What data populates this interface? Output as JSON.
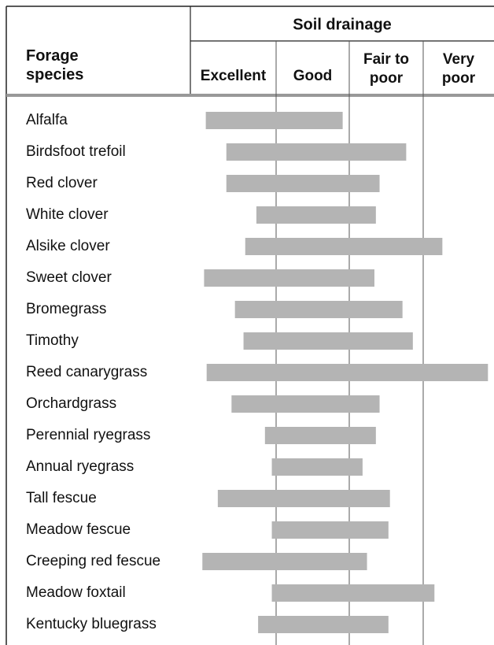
{
  "chart_data": {
    "type": "range-bar",
    "title": "Soil drainage",
    "row_header": "Forage species",
    "columns": [
      "Excellent",
      "Good",
      "Fair to poor",
      "Very poor"
    ],
    "categories": [
      "Alfalfa",
      "Birdsfoot trefoil",
      "Red clover",
      "White clover",
      "Alsike clover",
      "Sweet clover",
      "Bromegrass",
      "Timothy",
      "Reed canarygrass",
      "Orchardgrass",
      "Perennial ryegrass",
      "Annual ryegrass",
      "Tall fescue",
      "Meadow fescue",
      "Creeping red fescue",
      "Meadow foxtail",
      "Kentucky bluegrass"
    ],
    "start": [
      0.18,
      0.42,
      0.42,
      0.77,
      0.64,
      0.16,
      0.52,
      0.62,
      0.19,
      0.48,
      0.87,
      0.95,
      0.32,
      0.95,
      0.14,
      0.95,
      0.79
    ],
    "end": [
      1.91,
      2.77,
      2.41,
      2.36,
      3.29,
      2.34,
      2.72,
      2.86,
      3.98,
      2.41,
      2.36,
      2.18,
      2.55,
      2.53,
      2.24,
      3.17,
      2.53
    ],
    "xlim": [
      0,
      4
    ],
    "color": "#b4b4b4"
  }
}
